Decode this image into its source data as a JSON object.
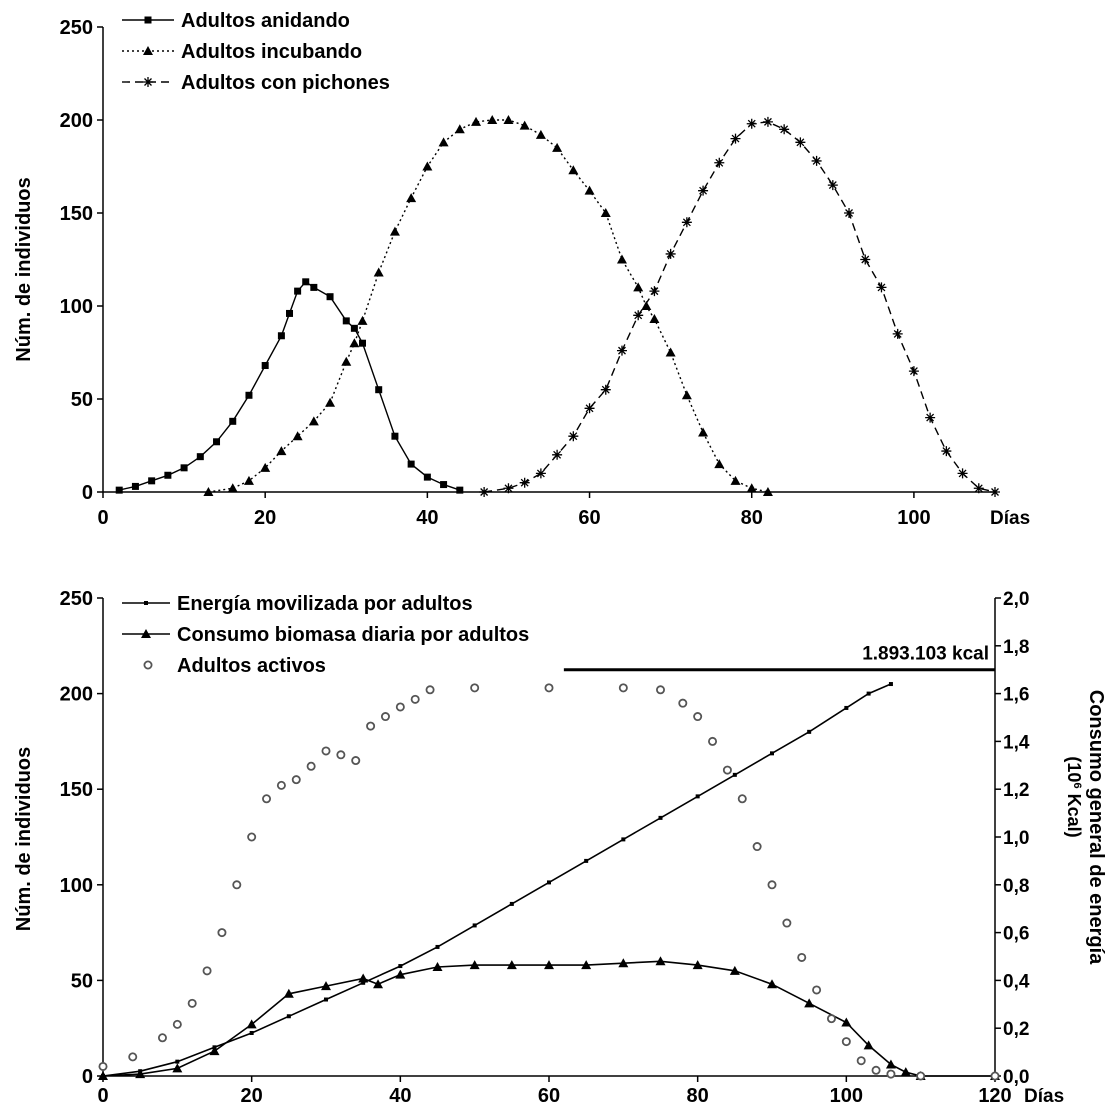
{
  "chart_data": [
    {
      "type": "line",
      "title": "",
      "xlabel": "Días",
      "ylabel": "Núm. de individuos",
      "xlim": [
        0,
        110
      ],
      "ylim": [
        0,
        250
      ],
      "xticks": [
        "0",
        "20",
        "40",
        "60",
        "80",
        "100"
      ],
      "yticks": [
        "0",
        "50",
        "100",
        "150",
        "200",
        "250"
      ],
      "grid": false,
      "legend_position": "top-left",
      "series": [
        {
          "name": "Adultos anidando",
          "marker": "square",
          "line_style": "solid",
          "points": [
            [
              2,
              1
            ],
            [
              4,
              3
            ],
            [
              6,
              6
            ],
            [
              8,
              9
            ],
            [
              10,
              13
            ],
            [
              12,
              19
            ],
            [
              14,
              27
            ],
            [
              16,
              38
            ],
            [
              18,
              52
            ],
            [
              20,
              68
            ],
            [
              22,
              84
            ],
            [
              23,
              96
            ],
            [
              24,
              108
            ],
            [
              25,
              113
            ],
            [
              26,
              110
            ],
            [
              28,
              105
            ],
            [
              30,
              92
            ],
            [
              31,
              88
            ],
            [
              32,
              80
            ],
            [
              34,
              55
            ],
            [
              36,
              30
            ],
            [
              38,
              15
            ],
            [
              40,
              8
            ],
            [
              42,
              4
            ],
            [
              44,
              1
            ]
          ]
        },
        {
          "name": "Adultos incubando",
          "marker": "triangle",
          "line_style": "dotted",
          "points": [
            [
              13,
              0
            ],
            [
              16,
              2
            ],
            [
              18,
              6
            ],
            [
              20,
              13
            ],
            [
              22,
              22
            ],
            [
              24,
              30
            ],
            [
              26,
              38
            ],
            [
              28,
              48
            ],
            [
              30,
              70
            ],
            [
              31,
              80
            ],
            [
              32,
              92
            ],
            [
              34,
              118
            ],
            [
              36,
              140
            ],
            [
              38,
              158
            ],
            [
              40,
              175
            ],
            [
              42,
              188
            ],
            [
              44,
              195
            ],
            [
              46,
              199
            ],
            [
              48,
              200
            ],
            [
              50,
              200
            ],
            [
              52,
              197
            ],
            [
              54,
              192
            ],
            [
              56,
              185
            ],
            [
              58,
              173
            ],
            [
              60,
              162
            ],
            [
              62,
              150
            ],
            [
              64,
              125
            ],
            [
              66,
              110
            ],
            [
              67,
              100
            ],
            [
              68,
              93
            ],
            [
              70,
              75
            ],
            [
              72,
              52
            ],
            [
              74,
              32
            ],
            [
              76,
              15
            ],
            [
              78,
              6
            ],
            [
              80,
              2
            ],
            [
              82,
              0
            ]
          ]
        },
        {
          "name": "Adultos con pichones",
          "marker": "star",
          "line_style": "dashed",
          "points": [
            [
              47,
              0
            ],
            [
              50,
              2
            ],
            [
              52,
              5
            ],
            [
              54,
              10
            ],
            [
              56,
              20
            ],
            [
              58,
              30
            ],
            [
              60,
              45
            ],
            [
              62,
              55
            ],
            [
              64,
              76
            ],
            [
              66,
              95
            ],
            [
              68,
              108
            ],
            [
              70,
              128
            ],
            [
              72,
              145
            ],
            [
              74,
              162
            ],
            [
              76,
              177
            ],
            [
              78,
              190
            ],
            [
              80,
              198
            ],
            [
              82,
              199
            ],
            [
              84,
              195
            ],
            [
              86,
              188
            ],
            [
              88,
              178
            ],
            [
              90,
              165
            ],
            [
              92,
              150
            ],
            [
              94,
              125
            ],
            [
              96,
              110
            ],
            [
              98,
              85
            ],
            [
              100,
              65
            ],
            [
              102,
              40
            ],
            [
              104,
              22
            ],
            [
              106,
              10
            ],
            [
              108,
              2
            ],
            [
              110,
              0
            ]
          ]
        }
      ]
    },
    {
      "type": "line",
      "title": "",
      "xlabel": "Días",
      "ylabel": "Núm. de individuos",
      "y2label": "Consumo general de energía",
      "y2unit": "(10",
      "y2unit_exp": "6",
      "y2unit_tail": " Kcal)",
      "xlim": [
        0,
        120
      ],
      "ylim": [
        0,
        250
      ],
      "y2lim": [
        0,
        2.0
      ],
      "xticks": [
        "0",
        "20",
        "40",
        "60",
        "80",
        "100",
        "120"
      ],
      "yticks": [
        "0",
        "50",
        "100",
        "150",
        "200",
        "250"
      ],
      "y2ticks": [
        "0,0",
        "0,2",
        "0,4",
        "0,6",
        "0,8",
        "1,0",
        "1,2",
        "1,4",
        "1,6",
        "1,8",
        "2,0"
      ],
      "grid": false,
      "legend_position": "top-left",
      "annotation": {
        "text": "1.893.103 kcal",
        "x_from": 62,
        "x_to": 120,
        "y2": 1.7
      },
      "series": [
        {
          "name": "Energía movilizada por adultos",
          "marker": "small-square",
          "axis": "right",
          "points": [
            [
              0,
              0
            ],
            [
              5,
              0.02
            ],
            [
              10,
              0.06
            ],
            [
              15,
              0.12
            ],
            [
              20,
              0.18
            ],
            [
              25,
              0.25
            ],
            [
              30,
              0.32
            ],
            [
              35,
              0.39
            ],
            [
              40,
              0.46
            ],
            [
              45,
              0.54
            ],
            [
              50,
              0.63
            ],
            [
              55,
              0.72
            ],
            [
              60,
              0.81
            ],
            [
              65,
              0.9
            ],
            [
              70,
              0.99
            ],
            [
              75,
              1.08
            ],
            [
              80,
              1.17
            ],
            [
              85,
              1.26
            ],
            [
              90,
              1.35
            ],
            [
              95,
              1.44
            ],
            [
              100,
              1.54
            ],
            [
              103,
              1.6
            ],
            [
              106,
              1.64
            ]
          ]
        },
        {
          "name": "Consumo biomasa diaria por adultos",
          "marker": "triangle",
          "axis": "left",
          "points": [
            [
              0,
              0
            ],
            [
              5,
              1
            ],
            [
              10,
              4
            ],
            [
              15,
              13
            ],
            [
              20,
              27
            ],
            [
              25,
              43
            ],
            [
              30,
              47
            ],
            [
              35,
              51
            ],
            [
              37,
              48
            ],
            [
              40,
              53
            ],
            [
              45,
              57
            ],
            [
              50,
              58
            ],
            [
              55,
              58
            ],
            [
              60,
              58
            ],
            [
              65,
              58
            ],
            [
              70,
              59
            ],
            [
              75,
              60
            ],
            [
              80,
              58
            ],
            [
              85,
              55
            ],
            [
              90,
              48
            ],
            [
              95,
              38
            ],
            [
              100,
              28
            ],
            [
              103,
              16
            ],
            [
              106,
              6
            ],
            [
              108,
              2
            ],
            [
              110,
              0
            ],
            [
              120,
              0
            ]
          ]
        },
        {
          "name": "Adultos activos",
          "marker": "open-circle",
          "axis": "left",
          "points": [
            [
              0,
              5
            ],
            [
              4,
              10
            ],
            [
              8,
              20
            ],
            [
              10,
              27
            ],
            [
              12,
              38
            ],
            [
              14,
              55
            ],
            [
              16,
              75
            ],
            [
              18,
              100
            ],
            [
              20,
              125
            ],
            [
              22,
              145
            ],
            [
              24,
              152
            ],
            [
              26,
              155
            ],
            [
              28,
              162
            ],
            [
              30,
              170
            ],
            [
              32,
              168
            ],
            [
              34,
              165
            ],
            [
              36,
              183
            ],
            [
              38,
              188
            ],
            [
              40,
              193
            ],
            [
              42,
              197
            ],
            [
              44,
              202
            ],
            [
              50,
              203
            ],
            [
              60,
              203
            ],
            [
              70,
              203
            ],
            [
              75,
              202
            ],
            [
              78,
              195
            ],
            [
              80,
              188
            ],
            [
              82,
              175
            ],
            [
              84,
              160
            ],
            [
              86,
              145
            ],
            [
              88,
              120
            ],
            [
              90,
              100
            ],
            [
              92,
              80
            ],
            [
              94,
              62
            ],
            [
              96,
              45
            ],
            [
              98,
              30
            ],
            [
              100,
              18
            ],
            [
              102,
              8
            ],
            [
              104,
              3
            ],
            [
              106,
              1
            ],
            [
              110,
              0
            ],
            [
              120,
              0
            ]
          ]
        }
      ]
    }
  ]
}
